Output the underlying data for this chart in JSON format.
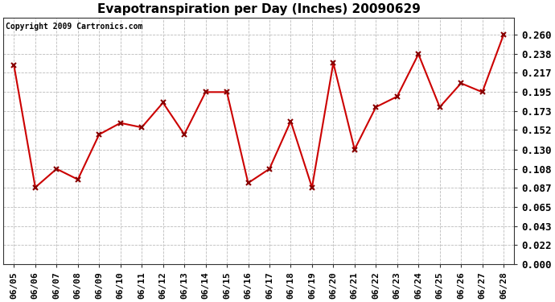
{
  "title": "Evapotranspiration per Day (Inches) 20090629",
  "copyright": "Copyright 2009 Cartronics.com",
  "dates": [
    "06/05",
    "06/06",
    "06/07",
    "06/08",
    "06/09",
    "06/10",
    "06/11",
    "06/12",
    "06/13",
    "06/14",
    "06/15",
    "06/16",
    "06/17",
    "06/18",
    "06/19",
    "06/20",
    "06/21",
    "06/22",
    "06/23",
    "06/24",
    "06/25",
    "06/26",
    "06/27",
    "06/28"
  ],
  "values": [
    0.225,
    0.087,
    0.108,
    0.096,
    0.147,
    0.16,
    0.155,
    0.183,
    0.147,
    0.195,
    0.195,
    0.092,
    0.108,
    0.162,
    0.087,
    0.228,
    0.13,
    0.178,
    0.19,
    0.238,
    0.178,
    0.205,
    0.195,
    0.26
  ],
  "line_color": "#cc0000",
  "marker": "x",
  "marker_color": "#880000",
  "marker_size": 5,
  "line_width": 1.5,
  "ylim": [
    0.0,
    0.2795
  ],
  "yticks": [
    0.0,
    0.022,
    0.043,
    0.065,
    0.087,
    0.108,
    0.13,
    0.152,
    0.173,
    0.195,
    0.217,
    0.238,
    0.26
  ],
  "background_color": "#ffffff",
  "grid_color": "#bbbbbb",
  "title_fontsize": 11,
  "copyright_fontsize": 7,
  "tick_fontsize": 9,
  "xtick_fontsize": 8
}
